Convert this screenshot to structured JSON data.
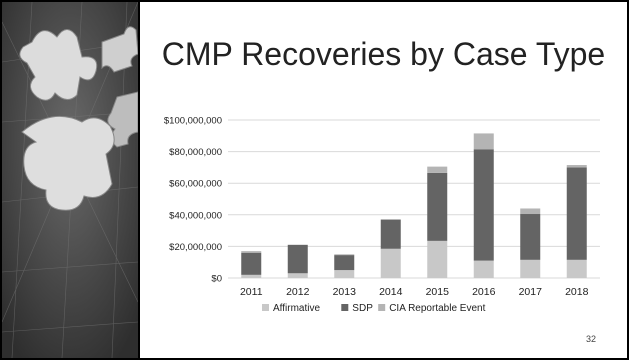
{
  "slide": {
    "title": "CMP Recoveries by Case Type",
    "page_number": "32"
  },
  "chart_data": {
    "type": "bar",
    "stacked": true,
    "categories": [
      "2011",
      "2012",
      "2013",
      "2014",
      "2015",
      "2016",
      "2017",
      "2018"
    ],
    "series": [
      {
        "name": "Affirmative",
        "color": "#c8c8c8",
        "values": [
          2000000,
          3000000,
          5000000,
          18500000,
          23500000,
          11000000,
          11500000,
          11500000
        ]
      },
      {
        "name": "SDP",
        "color": "#646464",
        "values": [
          14000000,
          18000000,
          9500000,
          18500000,
          43000000,
          70500000,
          29000000,
          58500000
        ]
      },
      {
        "name": "CIA Reportable Event",
        "color": "#b4b4b4",
        "values": [
          1000000,
          0,
          500000,
          0,
          4000000,
          10000000,
          3500000,
          1500000
        ]
      }
    ],
    "ylim": [
      0,
      100000000
    ],
    "yticks": [
      "$0",
      "$20,000,000",
      "$40,000,000",
      "$60,000,000",
      "$80,000,000",
      "$100,000,000"
    ],
    "grid": true,
    "legend_position": "bottom"
  }
}
